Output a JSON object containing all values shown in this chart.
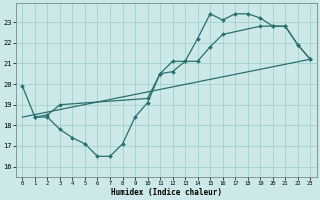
{
  "title": "",
  "xlabel": "Humidex (Indice chaleur)",
  "bg_color": "#cce8e8",
  "grid_color": "#99cccc",
  "line_color": "#2a7070",
  "xlim": [
    -0.5,
    23.5
  ],
  "ylim": [
    15.5,
    23.9
  ],
  "xticks": [
    0,
    1,
    2,
    3,
    4,
    5,
    6,
    7,
    8,
    9,
    10,
    11,
    12,
    13,
    14,
    15,
    16,
    17,
    18,
    19,
    20,
    21,
    22,
    23
  ],
  "yticks": [
    16,
    17,
    18,
    19,
    20,
    21,
    22,
    23
  ],
  "series1_x": [
    0,
    1,
    2,
    3,
    4,
    5,
    6,
    7,
    8,
    9,
    10,
    11,
    12,
    13,
    14,
    15,
    16,
    17,
    18,
    19,
    20,
    21,
    22,
    23
  ],
  "series1_y": [
    19.9,
    18.4,
    18.4,
    17.8,
    17.4,
    17.1,
    16.5,
    16.5,
    17.1,
    18.4,
    19.1,
    20.5,
    21.1,
    21.1,
    22.2,
    23.4,
    23.1,
    23.4,
    23.4,
    23.2,
    22.8,
    22.8,
    21.9,
    21.2
  ],
  "series2_x": [
    1,
    2,
    3,
    10,
    11,
    12,
    13,
    14,
    15,
    16,
    19,
    20,
    21,
    22,
    23
  ],
  "series2_y": [
    18.4,
    18.5,
    19.0,
    19.3,
    20.5,
    20.6,
    21.1,
    21.1,
    21.8,
    22.4,
    22.8,
    22.8,
    22.8,
    21.9,
    21.2
  ],
  "series3_x": [
    0,
    23
  ],
  "series3_y": [
    18.4,
    21.2
  ],
  "marker_size": 2.0,
  "linewidth": 0.9
}
